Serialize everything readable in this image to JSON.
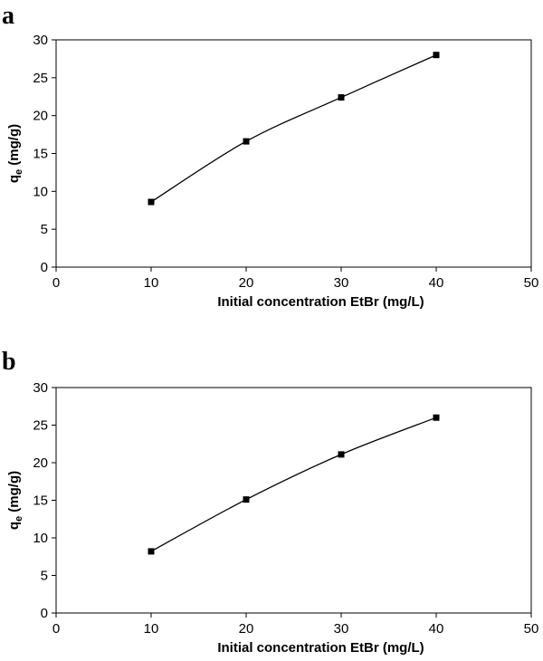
{
  "chart_data": [
    {
      "panel": "a",
      "type": "line",
      "x": [
        10,
        20,
        30,
        40
      ],
      "series": [
        {
          "values": [
            8.6,
            16.6,
            22.4,
            28.0
          ]
        }
      ],
      "xlabel": "Initial concentration EtBr (mg/L)",
      "ylabel_main": "q",
      "ylabel_sub": "e",
      "ylabel_unit": " (mg/g)",
      "xlim": [
        0,
        50
      ],
      "ylim": [
        0,
        30
      ],
      "xticks": [
        0,
        10,
        20,
        30,
        40,
        50
      ],
      "yticks": [
        0,
        5,
        10,
        15,
        20,
        25,
        30
      ],
      "grid": false,
      "marker": "square",
      "color": "#000000"
    },
    {
      "panel": "b",
      "type": "line",
      "x": [
        10,
        20,
        30,
        40
      ],
      "series": [
        {
          "values": [
            8.2,
            15.1,
            21.1,
            26.0
          ]
        }
      ],
      "xlabel": "Initial concentration EtBr (mg/L)",
      "ylabel_main": "q",
      "ylabel_sub": "e",
      "ylabel_unit": " (mg/g)",
      "xlim": [
        0,
        50
      ],
      "ylim": [
        0,
        30
      ],
      "xticks": [
        0,
        10,
        20,
        30,
        40,
        50
      ],
      "yticks": [
        0,
        5,
        10,
        15,
        20,
        25,
        30
      ],
      "grid": false,
      "marker": "square",
      "color": "#000000"
    }
  ]
}
